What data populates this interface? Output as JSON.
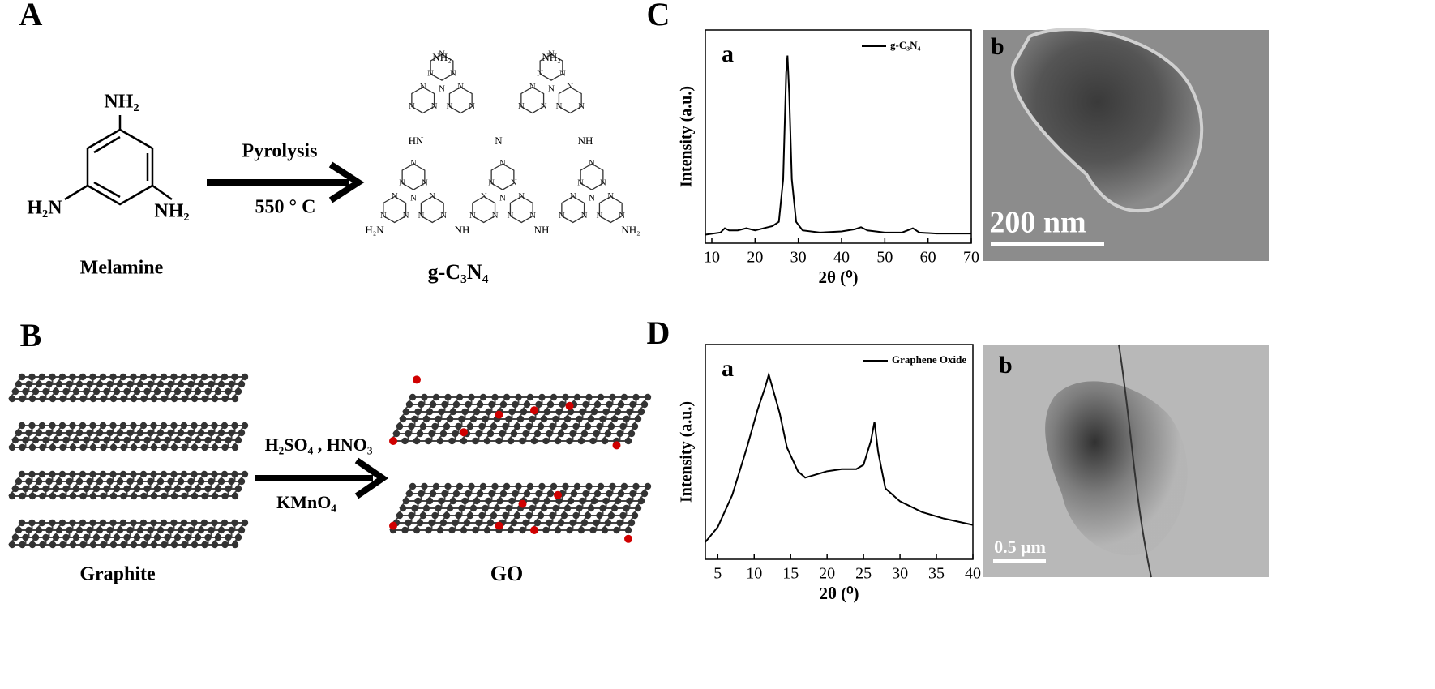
{
  "panels": {
    "A": {
      "label": "A",
      "reactant": "Melamine",
      "amine_top": "NH₂",
      "amine_left": "H₂N",
      "amine_right": "NH₂",
      "condition_top": "Pyrolysis",
      "condition_bottom": "550 ° C",
      "product": "g-C₃N₄",
      "ring_atom": "N",
      "terminal_right": "NH₂",
      "terminal_left": "H₂N",
      "linker_left": "HN",
      "linker_right": "NH"
    },
    "B": {
      "label": "B",
      "reactant": "Graphite",
      "condition_top": "H₂SO₄ , HNO₃",
      "condition_bottom": "KMnO₄",
      "product": "GO"
    },
    "C": {
      "label": "C",
      "image_label": "b",
      "scale_bar": "200 nm"
    },
    "D": {
      "label": "D",
      "image_label": "b",
      "scale_bar": "0.5 μm"
    }
  },
  "chart_data": [
    {
      "type": "line",
      "panel_label": "a",
      "x_label": "2θ (⁰)",
      "y_label": "Intensity (a.u.)",
      "xlim": [
        8.5,
        70
      ],
      "ylim": [
        0,
        100
      ],
      "xticks": [
        10,
        20,
        30,
        40,
        50,
        60,
        70
      ],
      "series": [
        {
          "name": "g-C₃N₄",
          "color": "#000000",
          "x": [
            8.5,
            12,
            13,
            14,
            16,
            18,
            20,
            22,
            24,
            25.5,
            26.5,
            27.2,
            27.5,
            27.9,
            28.5,
            29.5,
            31,
            35,
            40,
            43,
            44.5,
            46,
            50,
            54,
            56.5,
            58,
            62,
            70
          ],
          "values": [
            4,
            5,
            7,
            6,
            6,
            7,
            6,
            7,
            8,
            10,
            30,
            80,
            88,
            70,
            30,
            10,
            6,
            5,
            5.5,
            6.5,
            7.5,
            6,
            5,
            5,
            7,
            5,
            4.5,
            4.5
          ]
        }
      ]
    },
    {
      "type": "line",
      "panel_label": "a",
      "x_label": "2θ (⁰)",
      "y_label": "Intensity (a.u.)",
      "xlim": [
        3.3,
        40
      ],
      "ylim": [
        0,
        100
      ],
      "xticks": [
        5,
        10,
        15,
        20,
        25,
        30,
        35,
        40
      ],
      "series": [
        {
          "name": "Graphene Oxide",
          "color": "#000000",
          "x": [
            3.3,
            5,
            7,
            9,
            10.5,
            11.5,
            12,
            12.5,
            13.5,
            14.5,
            16,
            17,
            18,
            20,
            22,
            24,
            25,
            26,
            26.5,
            27,
            28,
            30,
            33,
            36,
            40
          ],
          "values": [
            8,
            15,
            30,
            52,
            70,
            80,
            86,
            80,
            68,
            52,
            41,
            38,
            39,
            41,
            42,
            42,
            44,
            55,
            64,
            50,
            33,
            27,
            22,
            19,
            16
          ]
        }
      ]
    }
  ]
}
